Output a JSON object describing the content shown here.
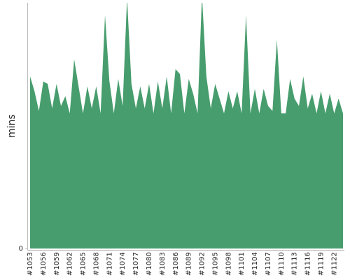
{
  "chart_data": {
    "type": "area",
    "y_label": "mins",
    "color": "#479d6d",
    "categories": [
      "#1053",
      null,
      null,
      "#1056",
      null,
      null,
      "#1059",
      null,
      null,
      "#1062",
      null,
      null,
      "#1065",
      null,
      null,
      "#1068",
      null,
      null,
      "#1071",
      null,
      null,
      "#1074",
      null,
      null,
      "#1077",
      null,
      null,
      "#1080",
      null,
      null,
      "#1083",
      null,
      null,
      "#1086",
      null,
      null,
      "#1089",
      null,
      null,
      "#1092",
      null,
      null,
      "#1095",
      null,
      null,
      "#1098",
      null,
      null,
      "#1101",
      null,
      null,
      "#1104",
      null,
      null,
      "#1107",
      null,
      null,
      "#1110",
      null,
      null,
      "#1113",
      null,
      null,
      "#1116",
      null,
      null,
      "#1119",
      null,
      null,
      "#1122",
      null,
      null
    ],
    "values": [
      70,
      64,
      56,
      68,
      67,
      57,
      67,
      58,
      62,
      55,
      77,
      66,
      55,
      66,
      57,
      66,
      55,
      95,
      68,
      55,
      69,
      58,
      102,
      67,
      57,
      66,
      57,
      67,
      55,
      68,
      57,
      70,
      55,
      73,
      71,
      55,
      69,
      63,
      55,
      103,
      70,
      57,
      67,
      61,
      55,
      64,
      57,
      64,
      55,
      95,
      55,
      65,
      55,
      65,
      58,
      56,
      85,
      55,
      55,
      69,
      61,
      58,
      70,
      57,
      63,
      55,
      64,
      55,
      63,
      55,
      61,
      55
    ],
    "ylim": [
      0,
      100
    ],
    "yticks": [
      0
    ]
  }
}
